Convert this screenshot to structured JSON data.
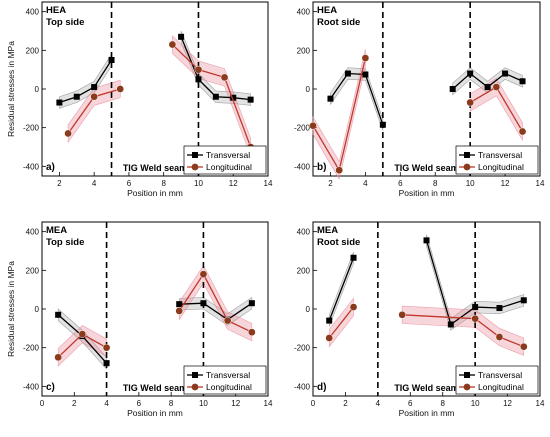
{
  "colors": {
    "transversal": "#000000",
    "longitudinal": "#c0392b",
    "longitudinal_marker": "#8b3a1c",
    "band_transversal": "#8c8c8c",
    "band_longitudinal": "#e88a99"
  },
  "chart_data": [
    {
      "type": "line",
      "panel": "a)",
      "title_lines": [
        "HEA",
        "Top side"
      ],
      "seam_label": "TIG Weld seam",
      "xlabel": "Position in mm",
      "ylabel": "Residual stresses in MPa",
      "xlim": [
        1,
        14
      ],
      "ylim": [
        -450,
        450
      ],
      "xticks": [
        2,
        4,
        6,
        8,
        10,
        12,
        14
      ],
      "yticks": [
        -400,
        -200,
        0,
        200,
        400
      ],
      "seam_lines": [
        5,
        10
      ],
      "legend": [
        "Transversal",
        "Longitudinal"
      ],
      "legend_position": "bottom-right",
      "series": [
        {
          "name": "Transversal",
          "segments": [
            {
              "x": [
                2,
                3,
                4,
                5
              ],
              "y": [
                -70,
                -40,
                10,
                150
              ]
            },
            {
              "x": [
                9,
                10,
                11,
                12,
                13
              ],
              "y": [
                270,
                50,
                -40,
                -45,
                -55
              ]
            }
          ]
        },
        {
          "name": "Longitudinal",
          "segments": [
            {
              "x": [
                2.5,
                4,
                5.5
              ],
              "y": [
                -230,
                -40,
                0
              ]
            },
            {
              "x": [
                8.5,
                10,
                11.5,
                13
              ],
              "y": [
                230,
                100,
                60,
                -300
              ]
            }
          ]
        }
      ]
    },
    {
      "type": "line",
      "panel": "b)",
      "title_lines": [
        "HEA",
        "Root side"
      ],
      "seam_label": "TIG Weld seam",
      "xlabel": "Position in mm",
      "ylabel": "",
      "xlim": [
        1,
        14
      ],
      "ylim": [
        -450,
        450
      ],
      "xticks": [
        2,
        4,
        6,
        8,
        10,
        12,
        14
      ],
      "yticks": [
        -400,
        -200,
        0,
        200,
        400
      ],
      "seam_lines": [
        5,
        10
      ],
      "legend": [
        "Transversal",
        "Longitudinal"
      ],
      "legend_position": "bottom-right",
      "series": [
        {
          "name": "Transversal",
          "segments": [
            {
              "x": [
                2,
                3,
                4,
                5
              ],
              "y": [
                -50,
                80,
                75,
                -185
              ]
            },
            {
              "x": [
                9,
                10,
                11,
                12,
                13
              ],
              "y": [
                0,
                80,
                10,
                80,
                40
              ]
            }
          ]
        },
        {
          "name": "Longitudinal",
          "segments": [
            {
              "x": [
                1,
                2.5,
                4
              ],
              "y": [
                -190,
                -420,
                160
              ]
            },
            {
              "x": [
                10,
                11.5,
                13
              ],
              "y": [
                -70,
                10,
                -220
              ]
            }
          ]
        }
      ]
    },
    {
      "type": "line",
      "panel": "c)",
      "title_lines": [
        "MEA",
        "Top side"
      ],
      "seam_label": "TIG Weld seam",
      "xlabel": "Position in mm",
      "ylabel": "Residual stresses in MPa",
      "xlim": [
        0,
        14
      ],
      "ylim": [
        -450,
        450
      ],
      "xticks": [
        0,
        2,
        4,
        6,
        8,
        10,
        12,
        14
      ],
      "yticks": [
        -400,
        -200,
        0,
        200,
        400
      ],
      "seam_lines": [
        4,
        10
      ],
      "legend": [
        "Transversal",
        "Longitudinal"
      ],
      "legend_position": "bottom-right",
      "series": [
        {
          "name": "Transversal",
          "segments": [
            {
              "x": [
                1,
                2.5,
                4
              ],
              "y": [
                -30,
                -140,
                -280
              ]
            },
            {
              "x": [
                8.5,
                10,
                11.5,
                13
              ],
              "y": [
                25,
                30,
                -55,
                30
              ]
            }
          ]
        },
        {
          "name": "Longitudinal",
          "segments": [
            {
              "x": [
                1,
                2.5,
                4
              ],
              "y": [
                -250,
                -130,
                -200
              ]
            },
            {
              "x": [
                8.5,
                10,
                11.5,
                13
              ],
              "y": [
                -10,
                180,
                -60,
                -120
              ]
            }
          ]
        }
      ]
    },
    {
      "type": "line",
      "panel": "d)",
      "title_lines": [
        "MEA",
        "Root side"
      ],
      "seam_label": "TIG Weld seam",
      "xlabel": "Position in mm",
      "ylabel": "",
      "xlim": [
        0,
        14
      ],
      "ylim": [
        -450,
        450
      ],
      "xticks": [
        0,
        2,
        4,
        6,
        8,
        10,
        12,
        14
      ],
      "yticks": [
        -400,
        -200,
        0,
        200,
        400
      ],
      "seam_lines": [
        4,
        10
      ],
      "legend": [
        "Transversal",
        "Longitudinal"
      ],
      "legend_position": "bottom-right",
      "series": [
        {
          "name": "Transversal",
          "segments": [
            {
              "x": [
                1,
                2.5
              ],
              "y": [
                -60,
                265
              ]
            },
            {
              "x": [
                7,
                8.5,
                10,
                11.5,
                13
              ],
              "y": [
                355,
                -80,
                10,
                5,
                45
              ]
            }
          ]
        },
        {
          "name": "Longitudinal",
          "segments": [
            {
              "x": [
                1,
                2.5
              ],
              "y": [
                -150,
                10
              ]
            },
            {
              "x": [
                5.5,
                10,
                11.5,
                13
              ],
              "y": [
                -30,
                -50,
                -145,
                -195
              ]
            }
          ]
        }
      ]
    }
  ]
}
